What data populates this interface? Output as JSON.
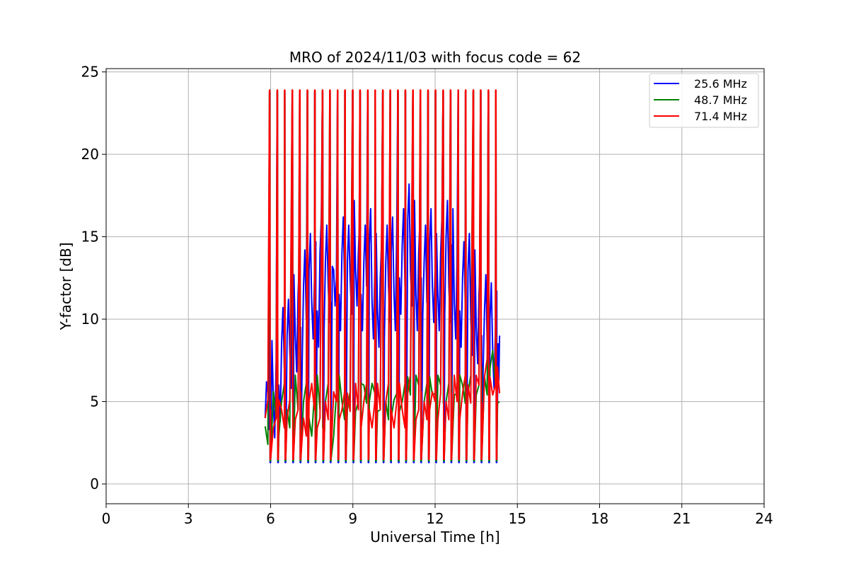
{
  "chart_data": {
    "type": "line",
    "title": "MRO of 2024/11/03 with focus code = 62",
    "xlabel": "Universal Time [h]",
    "ylabel": "Y-factor [dB]",
    "xlim": [
      0,
      24
    ],
    "ylim": [
      -1.2,
      25.2
    ],
    "xticks": [
      0,
      3,
      6,
      9,
      12,
      15,
      18,
      21,
      24
    ],
    "yticks": [
      0,
      5,
      10,
      15,
      20,
      25
    ],
    "grid": true,
    "legend_position": "top-right",
    "colors": {
      "25.6 MHz": "#0000ff",
      "48.7 MHz": "#008000",
      "71.4 MHz": "#ff0000"
    },
    "series": [
      {
        "name": "25.6 MHz",
        "color": "#0000ff",
        "x": [
          5.8,
          5.9,
          6.0,
          6.1,
          6.2,
          6.3,
          6.4,
          6.5,
          6.6,
          6.7,
          6.8,
          6.9,
          7.0,
          7.1,
          7.2,
          7.3,
          7.4,
          7.5,
          7.6,
          7.7,
          7.8,
          7.9,
          8.0,
          8.1,
          8.2,
          8.3,
          8.4,
          8.5,
          8.6,
          8.7,
          8.8,
          8.9,
          9.0,
          9.1,
          9.2,
          9.3,
          9.4,
          9.5,
          9.6,
          9.7,
          9.8,
          9.9,
          10.0,
          10.1,
          10.2,
          10.3,
          10.4,
          10.5,
          10.6,
          10.7,
          10.8,
          10.9,
          11.0,
          11.1,
          11.2,
          11.3,
          11.4,
          11.5,
          11.6,
          11.7,
          11.8,
          11.9,
          12.0,
          12.1,
          12.2,
          12.3,
          12.4,
          12.5,
          12.6,
          12.7,
          12.8,
          12.9,
          13.0,
          13.1,
          13.2,
          13.3,
          13.4,
          13.5,
          13.6,
          13.7,
          13.8,
          13.9,
          14.0,
          14.1,
          14.2,
          14.3,
          14.35
        ],
        "y": [
          4.0,
          5.5,
          6.5,
          5.0,
          7.5,
          6.0,
          8.5,
          7.0,
          9.0,
          8.0,
          10.5,
          9.0,
          11.5,
          9.5,
          12.0,
          10.0,
          13.0,
          11.0,
          12.5,
          10.5,
          14.0,
          11.5,
          13.5,
          12.0,
          11.0,
          13.0,
          12.5,
          11.5,
          14.0,
          12.0,
          13.5,
          12.5,
          15.0,
          13.0,
          14.0,
          11.5,
          13.5,
          12.0,
          14.5,
          11.0,
          13.0,
          10.5,
          12.5,
          11.0,
          13.5,
          12.0,
          14.0,
          11.5,
          15.5,
          12.5,
          14.5,
          12.0,
          16.0,
          13.0,
          15.0,
          11.5,
          14.0,
          12.5,
          13.5,
          11.0,
          14.5,
          12.0,
          13.0,
          11.5,
          14.0,
          12.5,
          15.0,
          12.0,
          14.5,
          11.0,
          13.5,
          10.5,
          12.5,
          11.0,
          13.0,
          10.0,
          12.0,
          9.5,
          11.5,
          9.0,
          10.5,
          8.5,
          10.0,
          8.0,
          9.5,
          8.5,
          9.0
        ]
      },
      {
        "name": "48.7 MHz",
        "color": "#008000",
        "x": [
          5.8,
          6.0,
          6.2,
          6.4,
          6.6,
          6.8,
          7.0,
          7.2,
          7.4,
          7.6,
          7.8,
          8.0,
          8.2,
          8.4,
          8.6,
          8.8,
          9.0,
          9.2,
          9.4,
          9.6,
          9.8,
          10.0,
          10.2,
          10.4,
          10.6,
          10.8,
          11.0,
          11.2,
          11.4,
          11.6,
          11.8,
          12.0,
          12.2,
          12.4,
          12.6,
          12.8,
          13.0,
          13.2,
          13.4,
          13.6,
          13.8,
          14.0,
          14.2,
          14.35
        ],
        "y": [
          3.5,
          4.5,
          4.0,
          5.0,
          4.5,
          5.5,
          4.5,
          5.0,
          4.0,
          5.5,
          4.5,
          5.0,
          4.0,
          5.5,
          5.0,
          4.5,
          5.5,
          5.0,
          6.0,
          5.0,
          5.5,
          4.5,
          5.0,
          4.0,
          5.5,
          5.0,
          6.5,
          5.5,
          6.0,
          5.0,
          6.5,
          5.5,
          6.0,
          5.0,
          6.5,
          5.5,
          6.0,
          5.5,
          6.5,
          6.0,
          6.5,
          7.0,
          6.0,
          5.0
        ]
      },
      {
        "name": "71.4 MHz",
        "color": "#ff0000",
        "x": [
          5.8,
          6.0,
          6.2,
          6.4,
          6.6,
          6.8,
          7.0,
          7.2,
          7.4,
          7.6,
          7.8,
          8.0,
          8.2,
          8.4,
          8.6,
          8.8,
          9.0,
          9.2,
          9.4,
          9.6,
          9.8,
          10.0,
          10.2,
          10.4,
          10.6,
          10.8,
          11.0,
          11.2,
          11.4,
          11.6,
          11.8,
          12.0,
          12.2,
          12.4,
          12.6,
          12.8,
          13.0,
          13.2,
          13.4,
          13.6,
          13.8,
          14.0,
          14.2,
          14.35
        ],
        "y": [
          4.0,
          4.5,
          4.0,
          4.5,
          4.0,
          5.0,
          4.5,
          4.0,
          5.0,
          4.5,
          4.0,
          5.0,
          4.5,
          5.0,
          4.5,
          5.5,
          5.0,
          4.5,
          5.0,
          4.5,
          5.0,
          4.5,
          5.0,
          4.5,
          5.0,
          4.5,
          5.5,
          5.0,
          4.5,
          5.0,
          4.5,
          5.0,
          5.5,
          5.0,
          5.5,
          5.0,
          5.5,
          6.0,
          5.5,
          6.0,
          6.5,
          6.5,
          6.0,
          5.5
        ]
      }
    ],
    "spikes": {
      "description": "",
      "x": [
        5.97,
        6.25,
        6.52,
        6.8,
        7.07,
        7.35,
        7.62,
        7.9,
        8.17,
        8.45,
        8.72,
        9.0,
        9.27,
        9.55,
        9.82,
        10.1,
        10.37,
        10.65,
        10.92,
        11.2,
        11.47,
        11.75,
        12.02,
        12.3,
        12.57,
        12.85,
        13.12,
        13.4,
        13.67,
        13.95,
        14.22
      ],
      "top": 23.9,
      "bottom": 1.3
    }
  }
}
